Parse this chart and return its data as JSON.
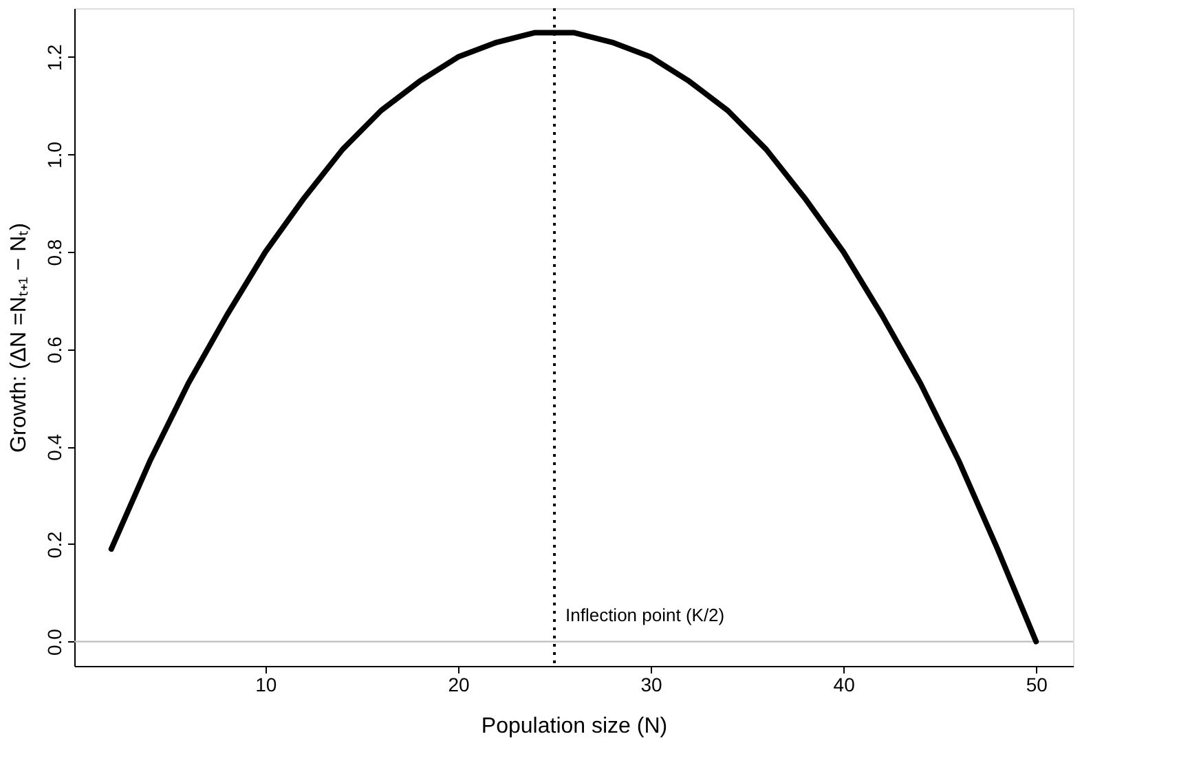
{
  "chart_data": {
    "type": "line",
    "xlabel": "Population size (N)",
    "ylabel": "Growth: (ΔN =Nₜ₊₁ − Nₜ)",
    "x": [
      2,
      4,
      6,
      8,
      10,
      12,
      14,
      16,
      18,
      20,
      22,
      24,
      25,
      26,
      28,
      30,
      32,
      34,
      36,
      38,
      40,
      42,
      44,
      46,
      48,
      50
    ],
    "series": [
      {
        "color": "#000000",
        "values": [
          0.19,
          0.37,
          0.53,
          0.67,
          0.8,
          0.91,
          1.01,
          1.09,
          1.15,
          1.2,
          1.23,
          1.25,
          1.25,
          1.25,
          1.23,
          1.2,
          1.15,
          1.09,
          1.01,
          0.91,
          0.8,
          0.67,
          0.53,
          0.37,
          0.19,
          0.0
        ]
      }
    ],
    "xlim": [
      0.08,
      51.92
    ],
    "ylim": [
      -0.05,
      1.3
    ],
    "xticks": [
      10,
      20,
      30,
      40,
      50
    ],
    "yticks": [
      {
        "value": 0,
        "label": "0.0"
      },
      {
        "value": 0.2,
        "label": "0.2"
      },
      {
        "value": 0.4,
        "label": "0.4"
      },
      {
        "value": 0.6,
        "label": "0.6"
      },
      {
        "value": 0.8,
        "label": "0.8"
      },
      {
        "value": 1.0,
        "label": "1.0"
      },
      {
        "value": 1.2,
        "label": "1.2"
      }
    ],
    "ref_lines": [
      {
        "axis": "x",
        "value": 25,
        "label": "Inflection point (K/2)",
        "color": "#000000",
        "line_style": "dotted"
      },
      {
        "axis": "y",
        "value": 0,
        "label": null,
        "color": "#bebebe",
        "line_style": "solid"
      }
    ],
    "grid": false,
    "marker": "none",
    "line_style": "solid"
  }
}
